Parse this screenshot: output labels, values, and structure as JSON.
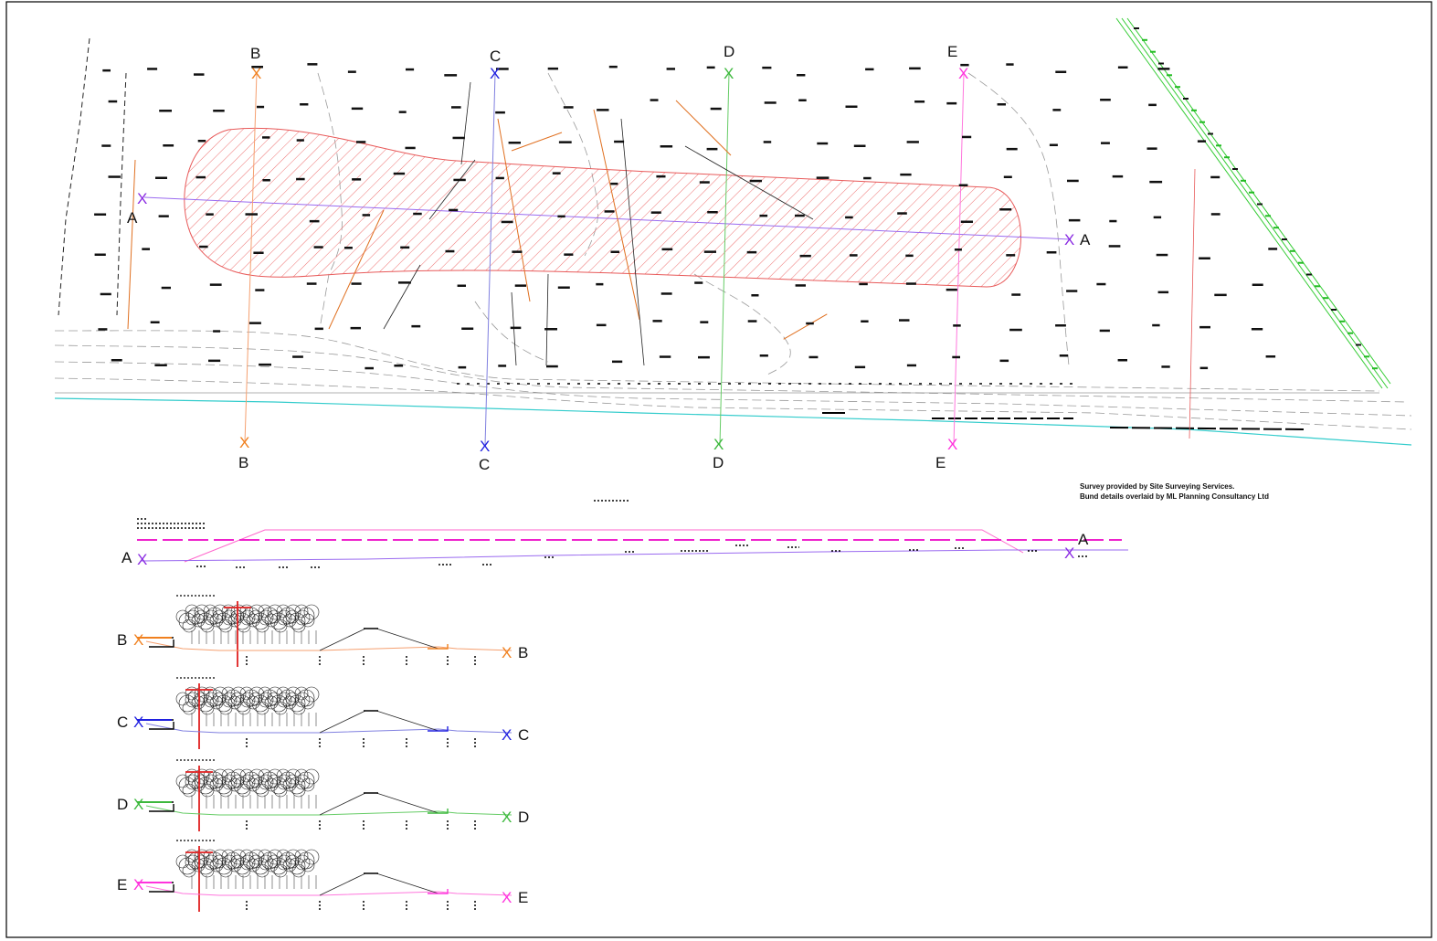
{
  "sections": [
    {
      "id": "A",
      "color": "#8a2be2"
    },
    {
      "id": "B",
      "color": "#f0801e"
    },
    {
      "id": "C",
      "color": "#2020e0"
    },
    {
      "id": "D",
      "color": "#3cb83c"
    },
    {
      "id": "E",
      "color": "#ff33dd"
    }
  ],
  "labels": {
    "a_left": "A",
    "a_right": "A",
    "b_top": "B",
    "b_bottom": "B",
    "c_top": "C",
    "c_bottom": "C",
    "d_top": "D",
    "d_bottom": "D",
    "e_top": "E",
    "e_bottom": "E",
    "sec_a_left": "A",
    "sec_a_right": "A",
    "sec_b_left": "B",
    "sec_b_right": "B",
    "sec_c_left": "C",
    "sec_c_right": "C",
    "sec_d_left": "D",
    "sec_d_right": "D",
    "sec_e_left": "E",
    "sec_e_right": "E"
  },
  "notes": {
    "line1": "Survey provided by Site Surveying Services.",
    "line2": "Bund details overlaid by ML Planning Consultancy Ltd"
  },
  "colors": {
    "bund_fill": "#f4a0a0",
    "bund_stroke": "#e85a5a",
    "boundary": "#33cc33",
    "water": "#33cccc"
  }
}
